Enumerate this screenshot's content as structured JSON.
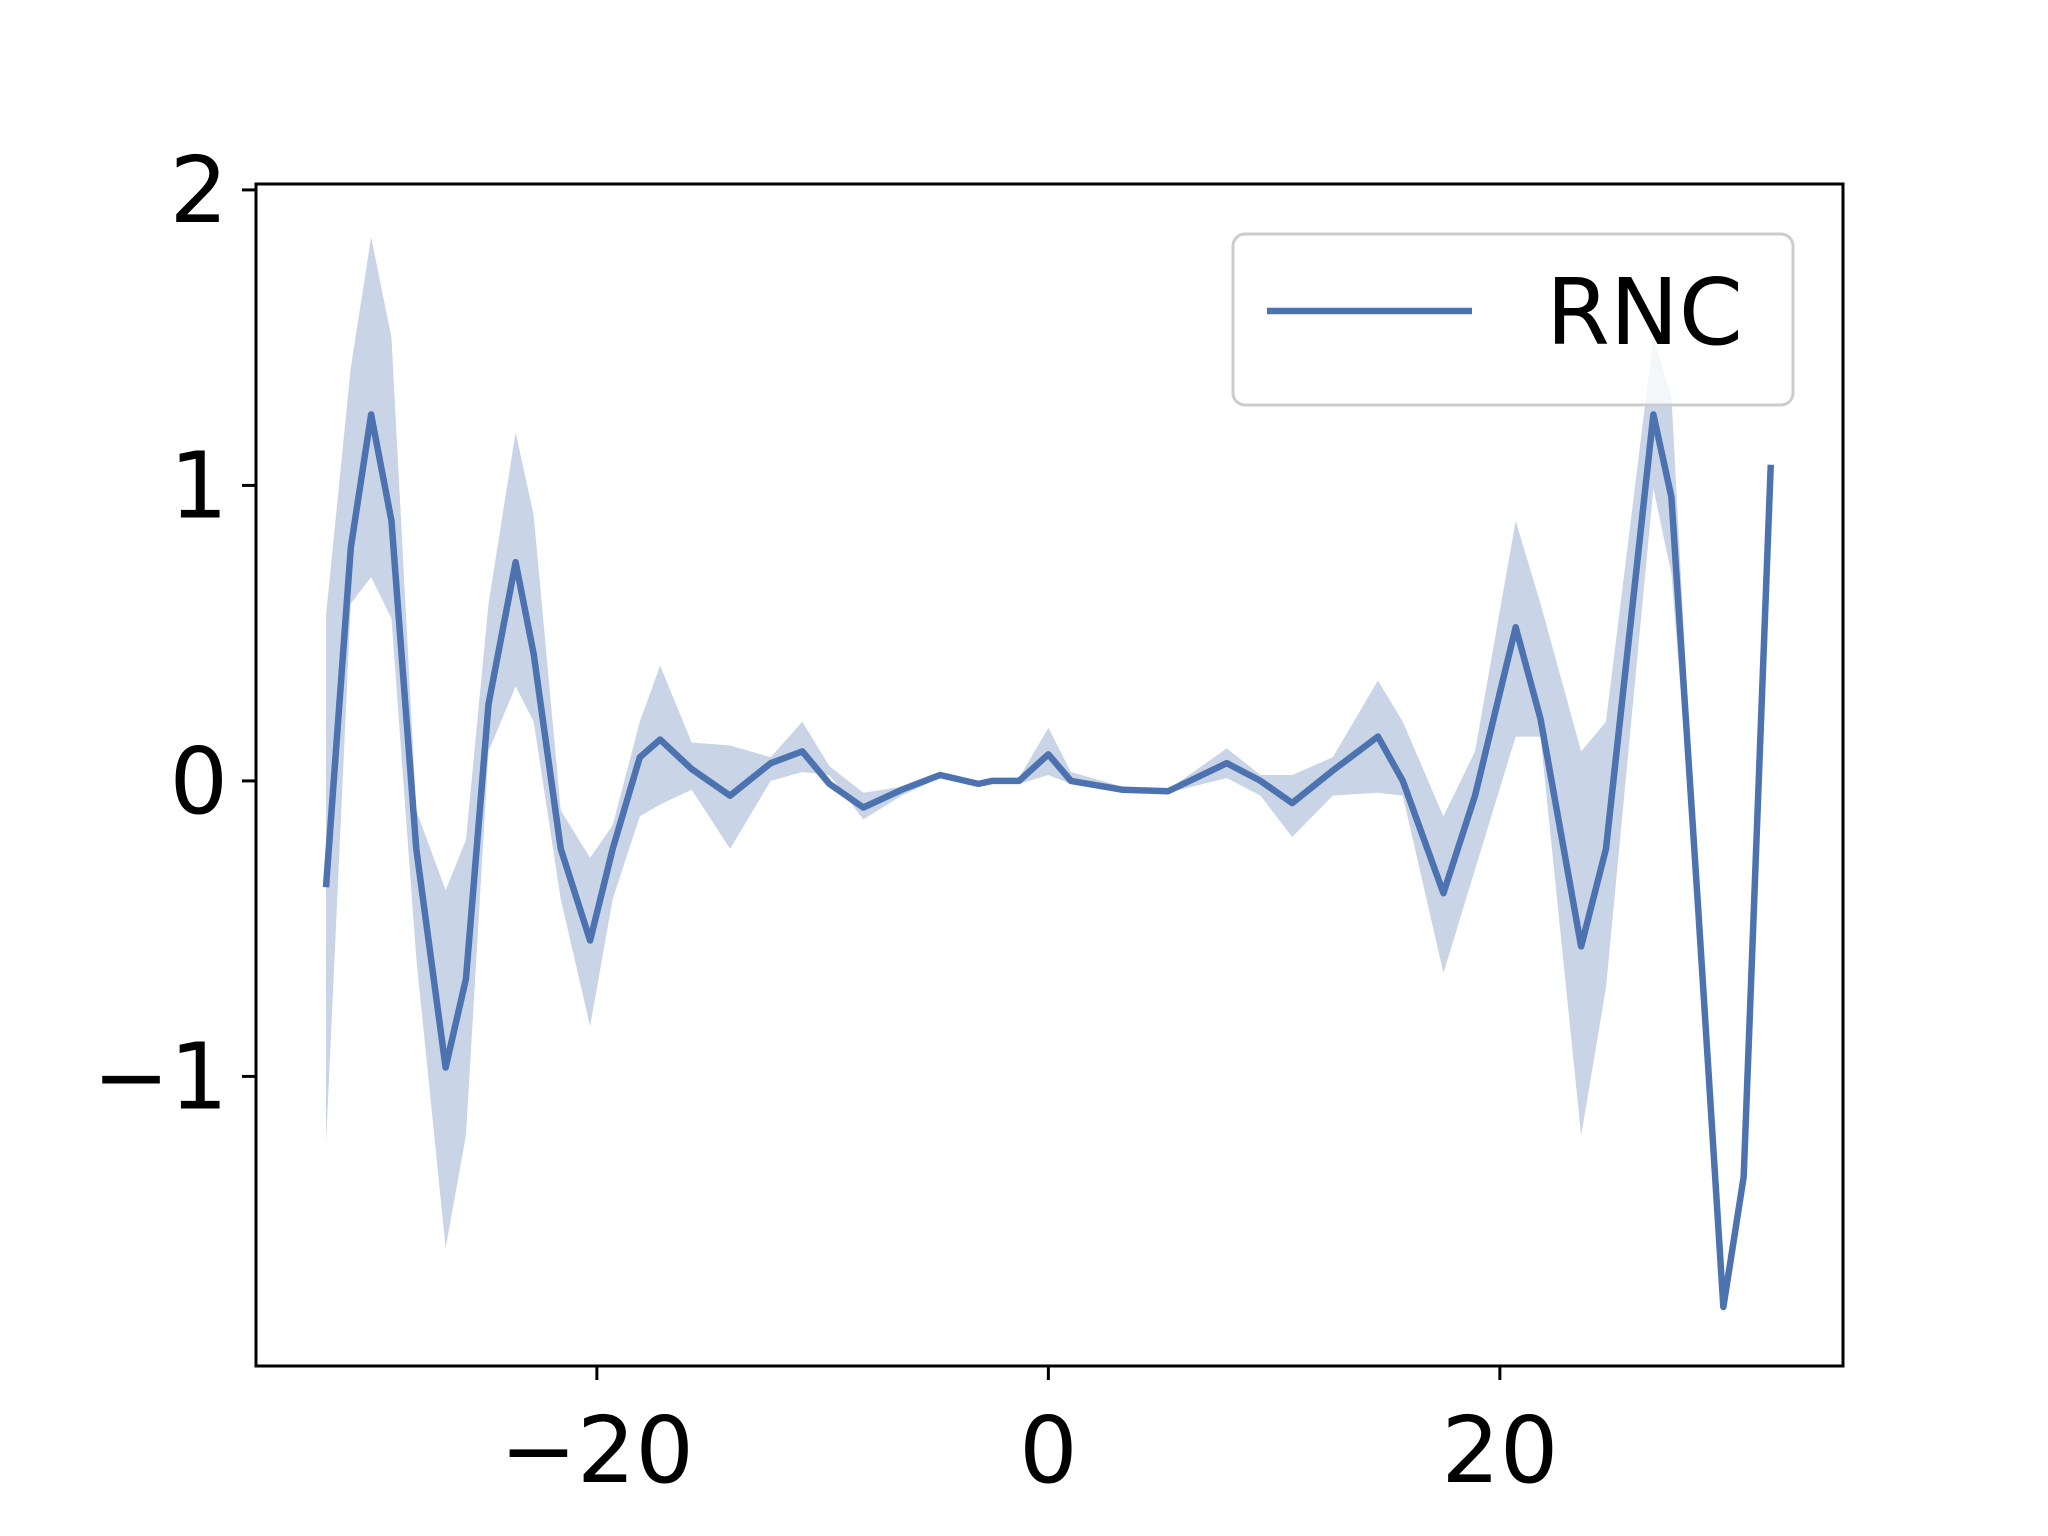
{
  "chart_data": {
    "type": "line",
    "xlim": [
      -35.1,
      35.2
    ],
    "ylim": [
      -1.98,
      2.02
    ],
    "xticks": [
      {
        "value": -20,
        "label": "−20"
      },
      0,
      20
    ],
    "yticks": [
      {
        "value": -1,
        "label": "−1"
      },
      0,
      1,
      2
    ],
    "legend": "upper right",
    "x": [
      -32,
      -30.9,
      -30,
      -29.1,
      -28,
      -26.7,
      -25.8,
      -24.8,
      -23.6,
      -22.8,
      -21.6,
      -20.3,
      -19.3,
      -18.1,
      -17.2,
      -15.8,
      -14.1,
      -12.3,
      -10.9,
      -9.7,
      -8.2,
      -6.5,
      -4.8,
      -3.1,
      -2.5,
      -1.3,
      0,
      1,
      3.3,
      5.3,
      7.9,
      9.4,
      10.8,
      12.6,
      14.6,
      15.7,
      17.5,
      18.9,
      20.7,
      21.8,
      23.6,
      24.7,
      26.8,
      27.6,
      28.8,
      29.9,
      30.8,
      32
    ],
    "series": [
      {
        "name": "RNC",
        "color": "#4c72b0",
        "values": [
          -0.36,
          0.79,
          1.24,
          0.88,
          -0.23,
          -0.97,
          -0.67,
          0.26,
          0.74,
          0.43,
          -0.23,
          -0.54,
          -0.23,
          0.08,
          0.14,
          0.04,
          -0.05,
          0.06,
          0.1,
          -0.01,
          -0.09,
          -0.03,
          0.02,
          -0.01,
          0,
          0,
          0.09,
          0,
          -0.03,
          -0.035,
          0.06,
          0,
          -0.075,
          0.035,
          0.15,
          0,
          -0.38,
          -0.05,
          0.52,
          0.21,
          -0.56,
          -0.23,
          1.24,
          0.96,
          -0.45,
          -1.78,
          -1.34,
          1.07
        ],
        "upper": [
          0.56,
          1.4,
          1.84,
          1.5,
          -0.1,
          -0.37,
          -0.2,
          0.6,
          1.18,
          0.9,
          -0.1,
          -0.26,
          -0.15,
          0.2,
          0.39,
          0.13,
          0.12,
          0.08,
          0.2,
          0.05,
          -0.04,
          -0.02,
          0.03,
          0,
          0,
          0.01,
          0.18,
          0.03,
          -0.02,
          -0.03,
          0.11,
          0.02,
          0.02,
          0.08,
          0.34,
          0.2,
          -0.12,
          0.1,
          0.88,
          0.6,
          0.1,
          0.2,
          1.5,
          1.3,
          -0.43,
          -1.76,
          -1.32,
          1.09
        ],
        "lower": [
          -1.23,
          0.6,
          0.69,
          0.55,
          -0.6,
          -1.58,
          -1.2,
          0.1,
          0.32,
          0.2,
          -0.4,
          -0.83,
          -0.4,
          -0.12,
          -0.08,
          -0.03,
          -0.23,
          0,
          0.03,
          0.02,
          -0.13,
          -0.05,
          0.01,
          -0.02,
          -0.01,
          -0.01,
          0.02,
          -0.01,
          -0.04,
          -0.04,
          0.01,
          -0.05,
          -0.19,
          -0.05,
          -0.04,
          -0.05,
          -0.65,
          -0.3,
          0.15,
          0.15,
          -1.2,
          -0.7,
          0.99,
          0.7,
          -0.47,
          -1.8,
          -1.36,
          1.05
        ]
      }
    ]
  }
}
